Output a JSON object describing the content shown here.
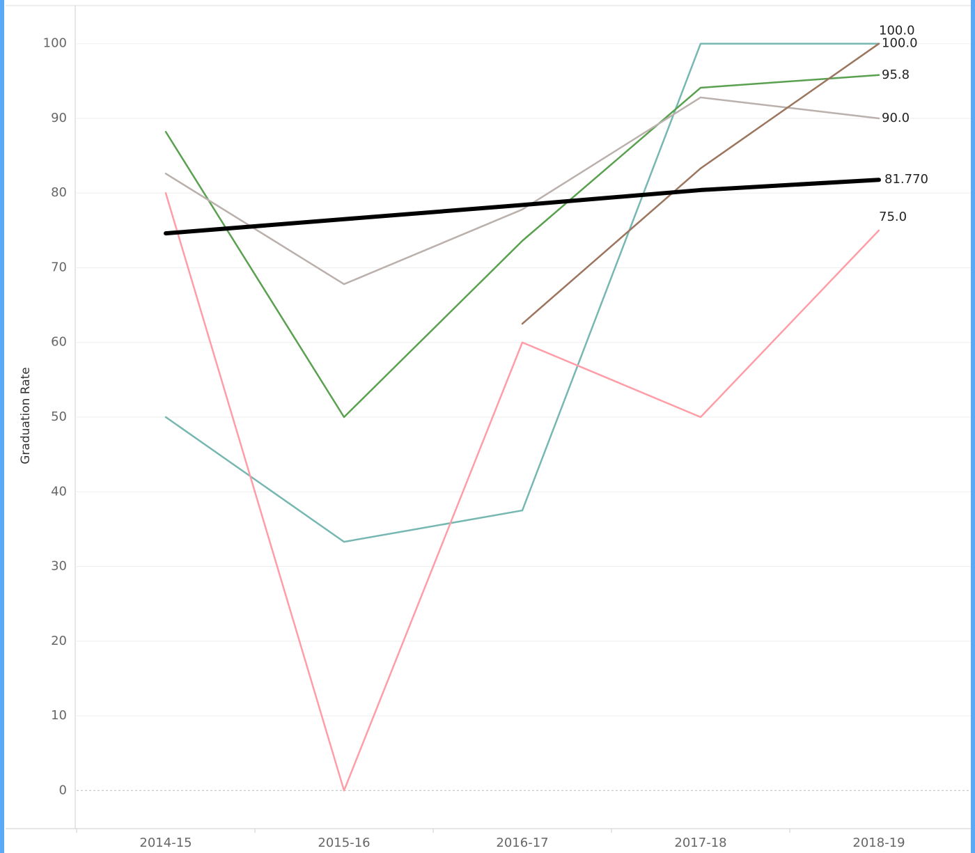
{
  "chart_data": {
    "type": "line",
    "y_label": "Graduation Rate",
    "categories": [
      "2014-15",
      "2015-16",
      "2016-17",
      "2017-18",
      "2018-19"
    ],
    "ylim": [
      -5.1,
      105.1
    ],
    "yticks": [
      0,
      10,
      20,
      30,
      40,
      50,
      60,
      70,
      80,
      90,
      100
    ],
    "grid": true,
    "series": [
      {
        "color": "#76b7b2",
        "values": [
          50,
          33.3,
          37.5,
          100,
          100
        ],
        "value_labels": [
          null,
          null,
          null,
          null,
          "100.0"
        ]
      },
      {
        "color": "#59a14f",
        "values": [
          88.2,
          50,
          73.6,
          94.1,
          95.8
        ],
        "value_labels": [
          null,
          null,
          null,
          null,
          "95.8"
        ]
      },
      {
        "color": "#bab0ac",
        "values": [
          82.6,
          67.8,
          77.8,
          92.8,
          90.0
        ],
        "value_labels": [
          null,
          null,
          null,
          null,
          "90.0"
        ]
      },
      {
        "color": "#ff9da7",
        "values": [
          80,
          0,
          60,
          50,
          75
        ],
        "value_labels": [
          null,
          null,
          null,
          null,
          "75.0"
        ]
      },
      {
        "color": "#9c755f",
        "values": [
          null,
          null,
          62.5,
          83.3,
          100
        ],
        "value_labels": [
          null,
          null,
          null,
          null,
          "100.0"
        ]
      },
      {
        "color": "#000000",
        "values": [
          74.6,
          76.5,
          78.4,
          80.4,
          81.77
        ],
        "value_labels": [
          null,
          null,
          null,
          null,
          "81.770"
        ]
      }
    ]
  }
}
